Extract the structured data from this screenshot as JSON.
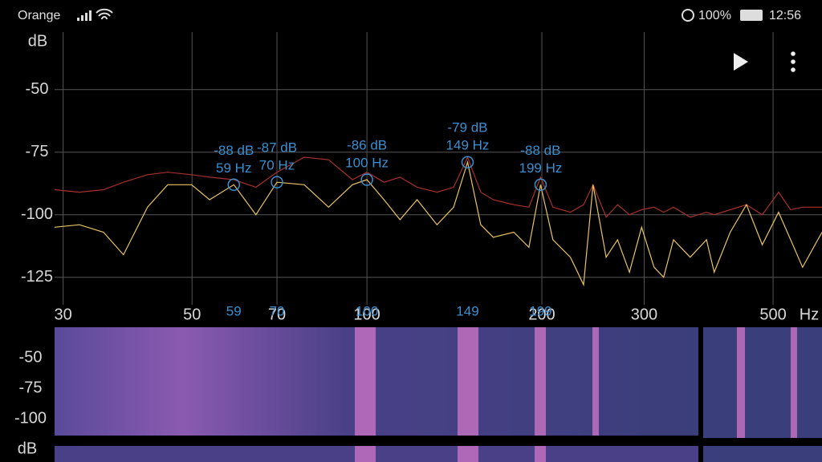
{
  "status_bar": {
    "carrier": "Orange",
    "battery": "100%",
    "time": "12:56"
  },
  "chart_data": {
    "type": "line",
    "y_label": "dB",
    "x_label": "Hz",
    "x_log": true,
    "grid": true,
    "xlim": [
      29,
      607
    ],
    "ylim": [
      -136,
      -27
    ],
    "xticks": [
      30,
      50,
      70,
      100,
      200,
      300,
      500
    ],
    "yticks": [
      -50,
      -75,
      -100,
      -125
    ],
    "x": [
      29,
      32,
      35.2,
      38.1,
      41.9,
      45.4,
      49.9,
      53.6,
      59,
      64.4,
      70,
      78,
      85.9,
      94.4,
      100,
      107,
      114,
      122,
      132,
      141,
      149,
      157,
      165,
      179,
      190,
      199,
      209,
      224,
      236,
      245,
      258,
      270,
      283,
      297,
      312,
      324,
      337,
      360,
      384,
      396,
      422,
      450,
      479,
      511,
      536,
      562,
      607
    ],
    "series": [
      {
        "color": "#a8302c",
        "values": [
          -90,
          -91,
          -90,
          -87,
          -84,
          -83,
          -84,
          -85,
          -86,
          -89,
          -83,
          -77,
          -78,
          -86,
          -83,
          -87,
          -85,
          -89,
          -91,
          -89,
          -77,
          -91,
          -94,
          -96,
          -97,
          -85,
          -97,
          -99,
          -96,
          -88,
          -101,
          -96,
          -100,
          -98,
          -97,
          -99,
          -97,
          -101,
          -99,
          -100,
          -98,
          -96,
          -100,
          -91,
          -98,
          -97,
          -97
        ]
      },
      {
        "color": "#e8c464",
        "values": [
          -105,
          -104,
          -107,
          -116,
          -97,
          -88,
          -88,
          -94,
          -88,
          -100,
          -87,
          -88,
          -97,
          -88,
          -86,
          -94,
          -102,
          -94,
          -104,
          -97,
          -79,
          -104,
          -109,
          -107,
          -113,
          -88,
          -110,
          -117,
          -128,
          -88,
          -117,
          -110,
          -123,
          -105,
          -121,
          -125,
          -110,
          -117,
          -110,
          -123,
          -107,
          -96,
          -112,
          -99,
          -110,
          -121,
          -107
        ]
      }
    ],
    "peaks": {
      "color": "#3a8fd0",
      "x": [
        59,
        70,
        100,
        149,
        199
      ],
      "values": [
        -88,
        -87,
        -86,
        -79,
        -88
      ],
      "value_labels": [
        "-88 dB",
        "-87 dB",
        "-86 dB",
        "-79 dB",
        "-88 dB"
      ],
      "x_labels": [
        "59 Hz",
        "70 Hz",
        "100 Hz",
        "149 Hz",
        "199 Hz"
      ]
    }
  },
  "spectrogram": {
    "ticks": [
      -50,
      -75,
      -100
    ],
    "unit": "dB"
  }
}
